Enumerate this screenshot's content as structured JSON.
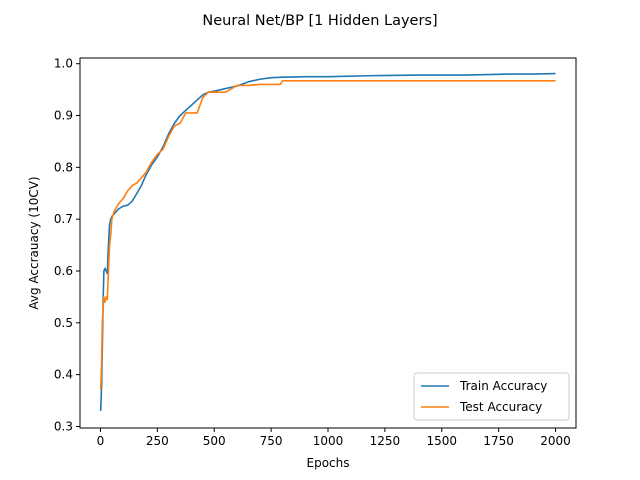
{
  "chart_data": {
    "type": "line",
    "title": "Neural Net/BP [1 Hidden Layers]",
    "xlabel": "Epochs",
    "ylabel": "Avg Accrauacy (10CV)",
    "xlim": [
      -90,
      2090
    ],
    "ylim": [
      0.297,
      1.011
    ],
    "xticks": [
      0,
      250,
      500,
      750,
      1000,
      1250,
      1500,
      1750,
      2000
    ],
    "xtick_labels": [
      "0",
      "250",
      "500",
      "750",
      "1000",
      "1250",
      "1500",
      "1750",
      "2000"
    ],
    "yticks": [
      0.3,
      0.4,
      0.5,
      0.6,
      0.7,
      0.8,
      0.9,
      1.0
    ],
    "ytick_labels": [
      "0.3",
      "0.4",
      "0.5",
      "0.6",
      "0.7",
      "0.8",
      "0.9",
      "1.0"
    ],
    "grid": false,
    "legend_position": "lower-right",
    "series": [
      {
        "name": "Train Accuracy",
        "color": "#1f77b4",
        "x": [
          1,
          5,
          8,
          12,
          15,
          20,
          25,
          30,
          35,
          40,
          45,
          50,
          60,
          80,
          100,
          120,
          140,
          160,
          180,
          200,
          225,
          250,
          275,
          300,
          325,
          350,
          375,
          400,
          425,
          450,
          475,
          500,
          550,
          600,
          650,
          700,
          750,
          800,
          900,
          1000,
          1200,
          1400,
          1600,
          1700,
          1800,
          1900,
          2000
        ],
        "y": [
          0.33,
          0.38,
          0.45,
          0.55,
          0.6,
          0.605,
          0.6,
          0.595,
          0.65,
          0.69,
          0.7,
          0.705,
          0.71,
          0.72,
          0.725,
          0.727,
          0.735,
          0.75,
          0.765,
          0.785,
          0.805,
          0.82,
          0.84,
          0.865,
          0.885,
          0.9,
          0.91,
          0.92,
          0.93,
          0.94,
          0.945,
          0.947,
          0.952,
          0.957,
          0.965,
          0.97,
          0.973,
          0.974,
          0.975,
          0.975,
          0.977,
          0.978,
          0.978,
          0.979,
          0.98,
          0.98,
          0.981
        ]
      },
      {
        "name": "Test Accuracy",
        "color": "#ff7f0e",
        "x": [
          1,
          5,
          8,
          12,
          15,
          20,
          25,
          30,
          35,
          40,
          45,
          50,
          60,
          80,
          100,
          120,
          140,
          160,
          180,
          200,
          225,
          250,
          275,
          300,
          325,
          350,
          375,
          400,
          425,
          450,
          475,
          500,
          550,
          600,
          650,
          700,
          750,
          790,
          800,
          900,
          1000,
          1200,
          1400,
          1600,
          1800,
          2000
        ],
        "y": [
          0.37,
          0.42,
          0.5,
          0.53,
          0.55,
          0.54,
          0.55,
          0.545,
          0.6,
          0.65,
          0.67,
          0.7,
          0.715,
          0.73,
          0.74,
          0.755,
          0.765,
          0.77,
          0.78,
          0.79,
          0.81,
          0.825,
          0.835,
          0.86,
          0.88,
          0.885,
          0.905,
          0.905,
          0.905,
          0.935,
          0.945,
          0.945,
          0.945,
          0.958,
          0.958,
          0.96,
          0.96,
          0.96,
          0.967,
          0.967,
          0.967,
          0.967,
          0.967,
          0.967,
          0.967,
          0.967
        ]
      }
    ]
  }
}
